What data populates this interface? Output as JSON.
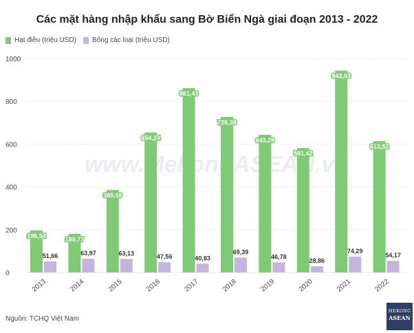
{
  "title": "Các mặt hàng nhập khẩu sang Bờ Biển Ngà giai đoạn 2013 - 2022",
  "source": "Nguồn: TCHQ Việt Nam",
  "watermark": "www.MekongASEAN.vn",
  "logo": {
    "line1": "MEKONG",
    "line2": "ASEAN"
  },
  "colors": {
    "series1": "#7fca74",
    "series2": "#c3b5dd",
    "grid": "#e6e6e6"
  },
  "chart_data": {
    "type": "bar",
    "categories": [
      "2013",
      "2014",
      "2015",
      "2016",
      "2017",
      "2018",
      "2019",
      "2020",
      "2021",
      "2022"
    ],
    "series": [
      {
        "name": "Hạt điều (triệu USD)",
        "values": [
          196.54,
          180.77,
          385.08,
          654.24,
          861.43,
          726.38,
          643.29,
          581.42,
          943.53,
          613.52
        ],
        "labels": [
          "196,54",
          "180,77",
          "385,08",
          "654,24",
          "861,43",
          "726,38",
          "643,29",
          "581,42",
          "943,53",
          "613,52"
        ]
      },
      {
        "name": "Bông các loại (triệu USD)",
        "values": [
          51.66,
          63.97,
          63.13,
          47.56,
          40.83,
          69.39,
          46.78,
          28.86,
          74.29,
          54.17
        ],
        "labels": [
          "51,66",
          "63,97",
          "63,13",
          "47,56",
          "40,83",
          "69,39",
          "46,78",
          "28,86",
          "74,29",
          "54,17"
        ]
      }
    ],
    "ylim": [
      0,
      1000
    ],
    "yticks": [
      0,
      200,
      400,
      600,
      800,
      1000
    ],
    "grid": true,
    "legend": "top-left"
  }
}
